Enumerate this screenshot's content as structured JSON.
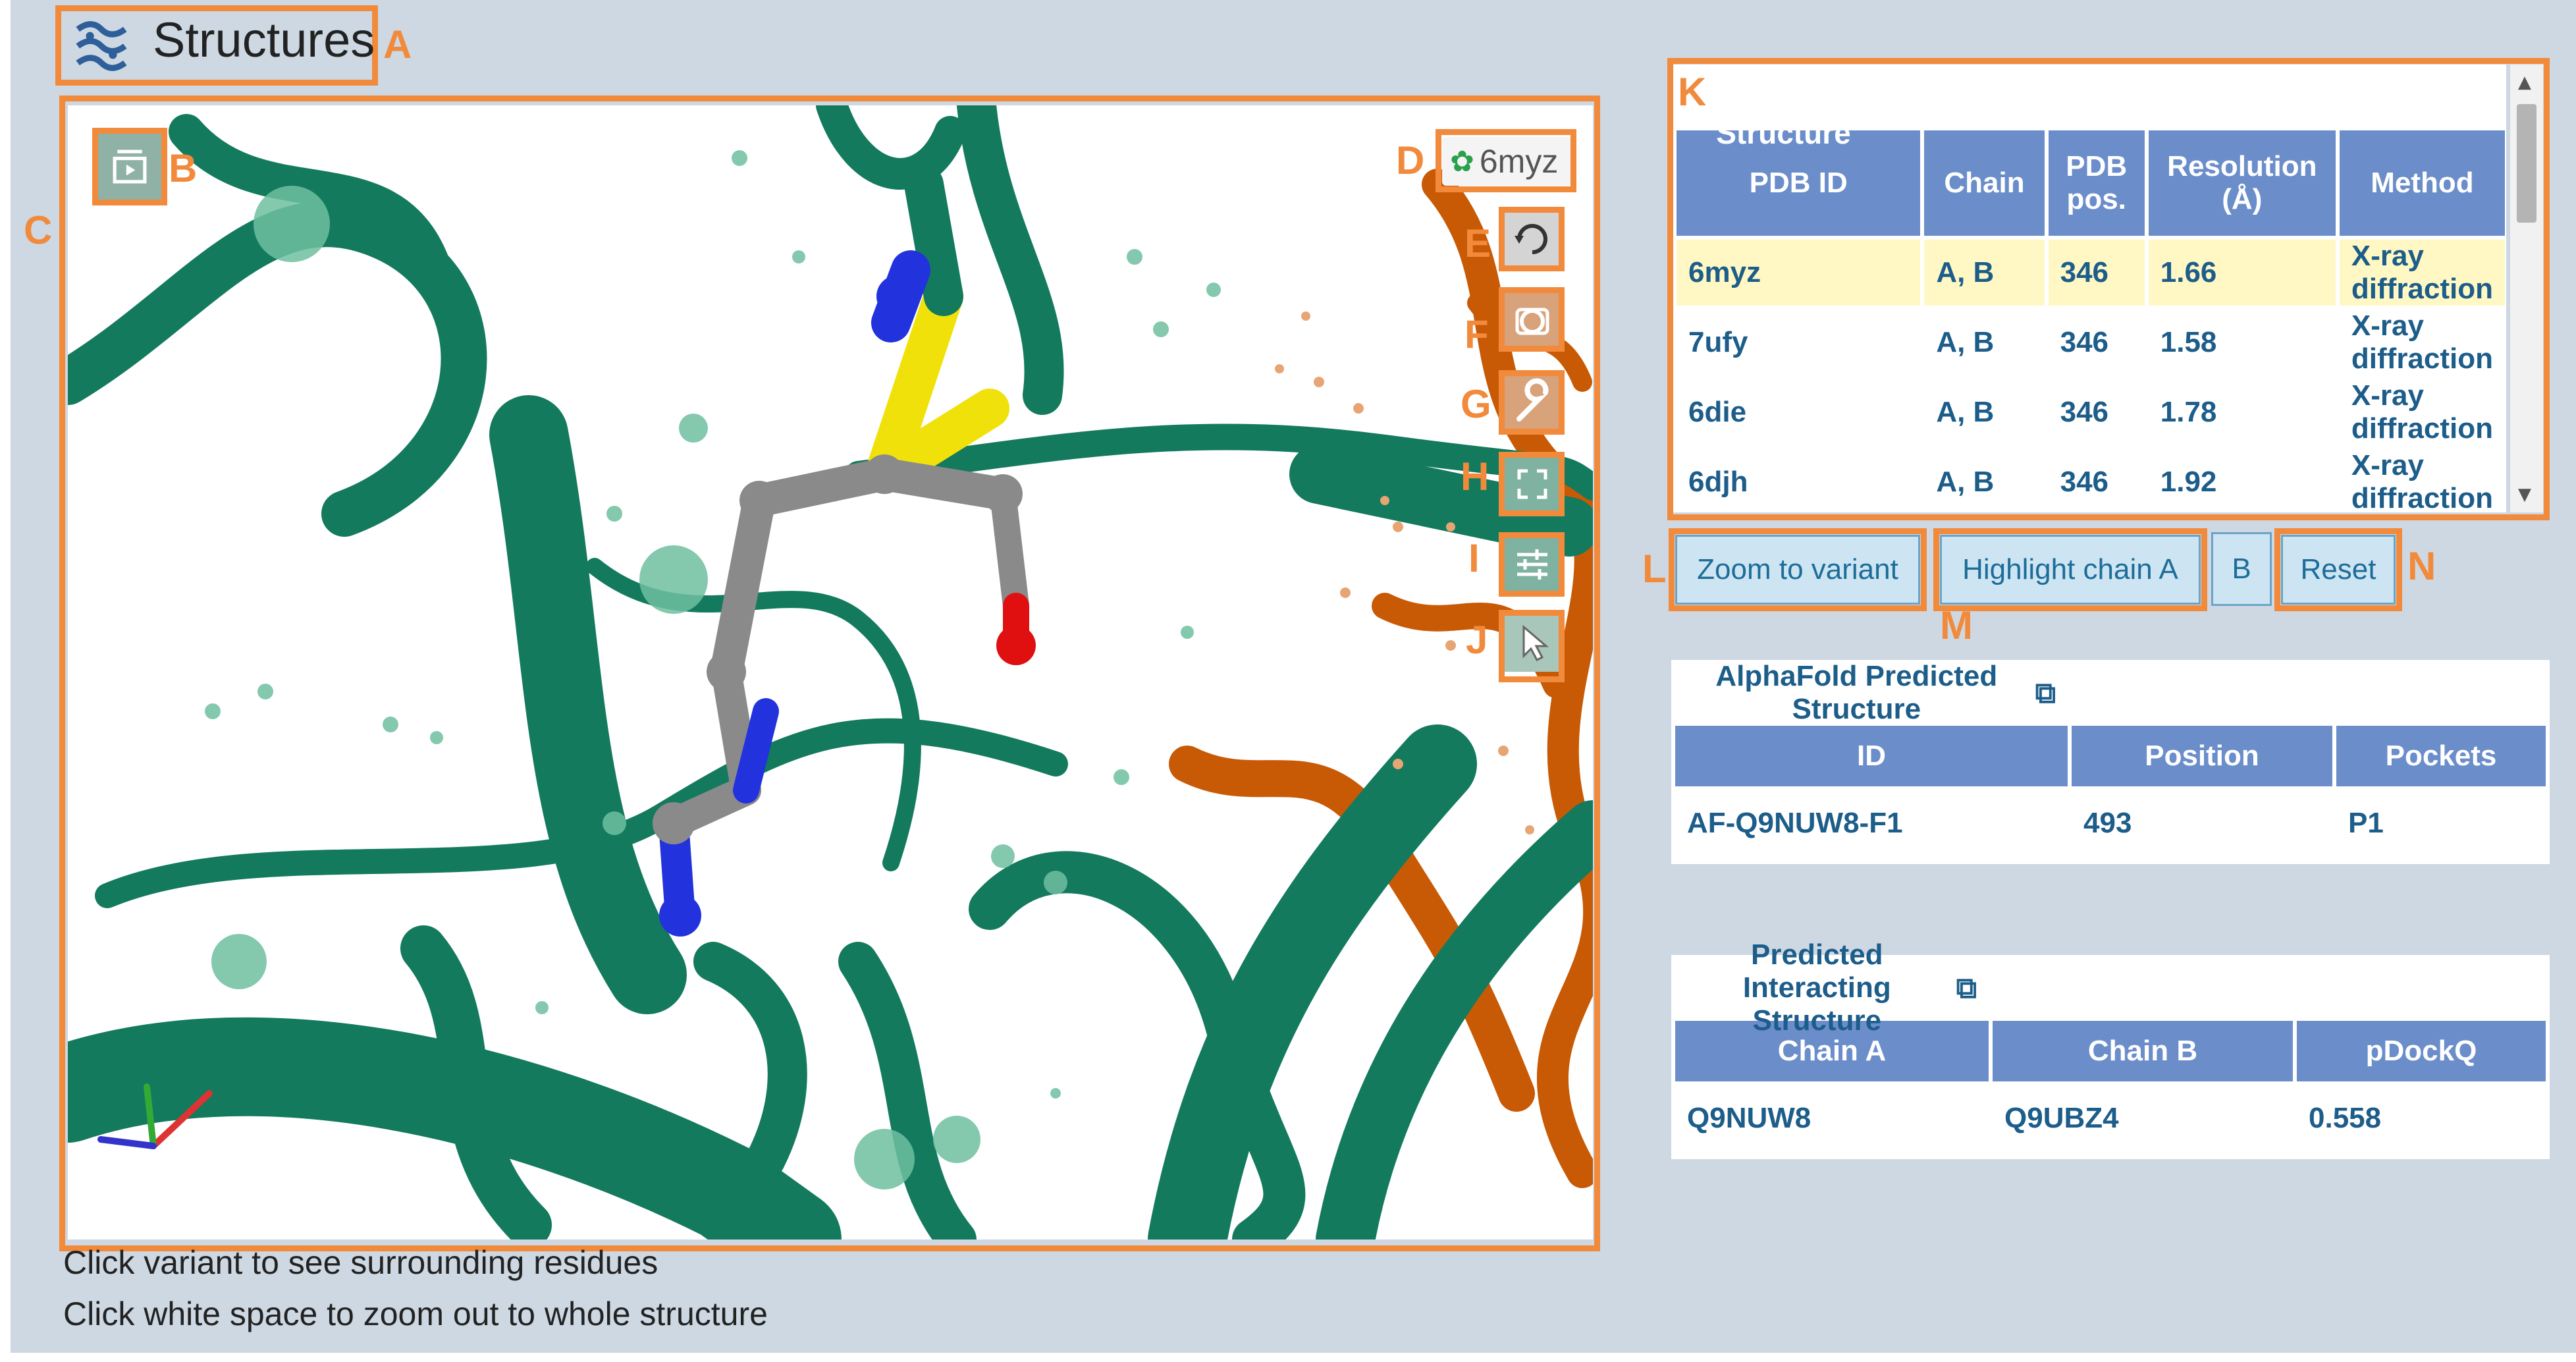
{
  "header": {
    "title": "Structures"
  },
  "annotations": [
    "A",
    "B",
    "C",
    "D",
    "E",
    "F",
    "G",
    "H",
    "I",
    "J",
    "K",
    "L",
    "M",
    "N"
  ],
  "viewer": {
    "pdb_label": "6myz",
    "hints": [
      "Click variant to see surrounding residues",
      "Click white space to zoom out to whole structure"
    ],
    "controls": [
      "reset-view-icon",
      "settings-icon",
      "wrench-icon",
      "fullscreen-icon",
      "sliders-icon",
      "selection-cursor-icon"
    ]
  },
  "pdbe": {
    "title": "PDBe Experimental Structure",
    "columns": [
      "PDB ID",
      "Chain",
      "PDB pos.",
      "Resolution (Å)",
      "Method"
    ],
    "col_pdbpos_l1": "PDB",
    "col_pdbpos_l2": "pos.",
    "col_res_l1": "Resolution",
    "col_res_l2": "(Å)",
    "rows": [
      {
        "id": "6myz",
        "chain": "A, B",
        "pos": "346",
        "res": "1.66",
        "method": "X-ray diffraction"
      },
      {
        "id": "7ufy",
        "chain": "A, B",
        "pos": "346",
        "res": "1.58",
        "method": "X-ray diffraction"
      },
      {
        "id": "6die",
        "chain": "A, B",
        "pos": "346",
        "res": "1.78",
        "method": "X-ray diffraction"
      },
      {
        "id": "6djh",
        "chain": "A, B",
        "pos": "346",
        "res": "1.92",
        "method": "X-ray diffraction"
      }
    ],
    "selected_row": 0
  },
  "buttons": {
    "zoom": "Zoom to variant",
    "highlight": "Highlight chain A",
    "chain_b": "B",
    "reset": "Reset"
  },
  "alphafold": {
    "title": "AlphaFold Predicted Structure",
    "columns": [
      "ID",
      "Position",
      "Pockets"
    ],
    "row": {
      "id": "AF-Q9NUW8-F1",
      "position": "493",
      "pockets": "P1"
    }
  },
  "interacting": {
    "title": "Predicted Interacting Structure",
    "columns": [
      "Chain A",
      "Chain B",
      "pDockQ"
    ],
    "row": {
      "a": "Q9NUW8",
      "b": "Q9UBZ4",
      "pdockq": "0.558"
    }
  },
  "colors": {
    "accent_orange": "#f28a3c",
    "table_header": "#6b8ecb",
    "protein_green": "#137a5e",
    "protein_orange": "#c85a05",
    "selected_row": "#fff8c4"
  }
}
